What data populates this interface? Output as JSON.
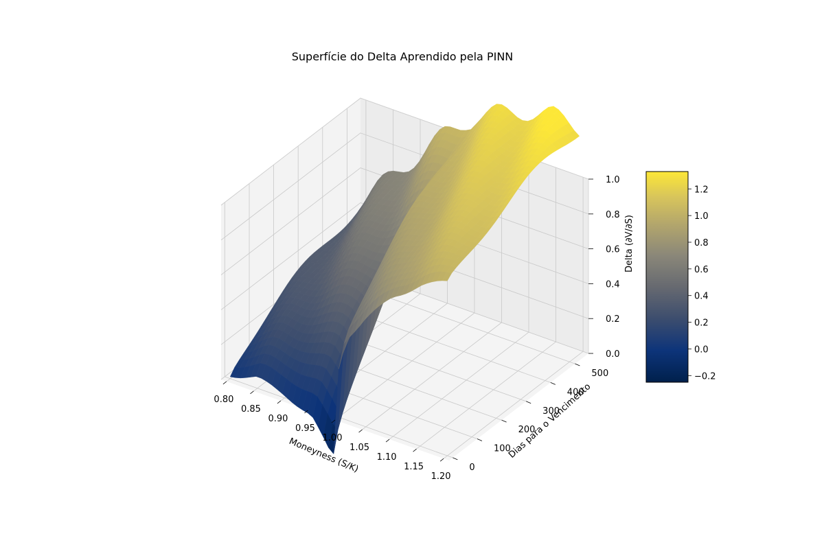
{
  "chart_data": {
    "type": "surface3d",
    "title": "Superfície do Delta Aprendido pela PINN",
    "xlabel": "Moneyness (S/K)",
    "ylabel": "Dias para o Vencimento",
    "zlabel": "Delta (∂V/∂S)",
    "x_ticks": [
      "0.80",
      "0.85",
      "0.90",
      "0.95",
      "1.00",
      "1.05",
      "1.10",
      "1.15",
      "1.20"
    ],
    "y_ticks": [
      "0",
      "100",
      "200",
      "300",
      "400",
      "500"
    ],
    "z_ticks": [
      "0.0",
      "0.2",
      "0.4",
      "0.6",
      "0.8",
      "1.0"
    ],
    "xlim": [
      0.79,
      1.21
    ],
    "ylim": [
      -15,
      555
    ],
    "zlim": [
      0.0,
      1.0
    ],
    "colormap": "cividis",
    "colorbar": {
      "ticks": [
        "−0.2",
        "0.0",
        "0.2",
        "0.4",
        "0.6",
        "0.8",
        "1.0",
        "1.2"
      ],
      "range": [
        -0.25,
        1.33
      ]
    },
    "grid": true,
    "surface_profile": {
      "moneyness": [
        0.8,
        0.85,
        0.9,
        0.95,
        0.99,
        1.0,
        1.01,
        1.05,
        1.1,
        1.15,
        1.2
      ],
      "delta_at_0_days": [
        0.02,
        0.06,
        0.02,
        -0.05,
        -0.25,
        0.28,
        0.45,
        0.62,
        0.8,
        0.92,
        1.0
      ],
      "delta_at_540_days": [
        0.45,
        0.62,
        0.8,
        0.98,
        1.1,
        1.12,
        1.15,
        1.22,
        1.28,
        1.32,
        1.3
      ]
    }
  }
}
